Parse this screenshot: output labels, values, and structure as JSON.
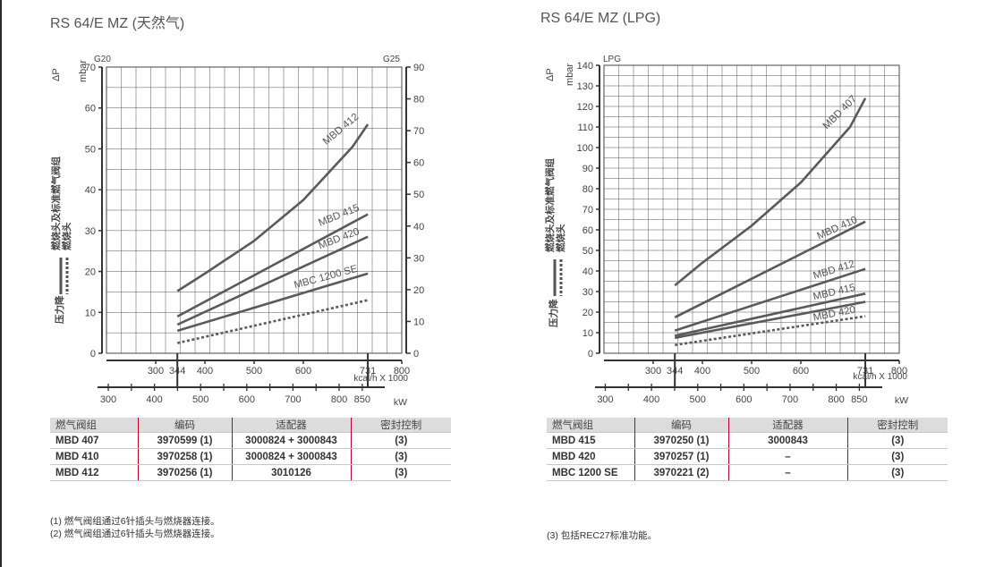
{
  "page": {
    "left_title": "RS 64/E MZ (天然气)",
    "right_title": "RS 64/E MZ (LPG)"
  },
  "axis_text": {
    "delta_p": "ΔP",
    "mbar": "mbar",
    "legend_head": "燃烧头及标准燃气阀组",
    "legend_valve": "燃烧头",
    "pressure_drop": "压力降",
    "kcal_unit": "kcal/h X 1000",
    "kw_unit": "kW"
  },
  "labels": {
    "mbd407": "MBD 407",
    "mbd410": "MBD 410",
    "mbd412": "MBD 412",
    "mbd415": "MBD 415",
    "mbd420": "MBD 420",
    "mbc1200": "MBC 1200 SE"
  },
  "chart_data": [
    {
      "type": "line",
      "title": "RS 64/E MZ (天然气)",
      "ylabel": "ΔP mbar",
      "left_axis_label": "G20",
      "right_axis_label": "G25",
      "ylim": [
        0,
        70
      ],
      "y_ticks": [
        0,
        10,
        20,
        30,
        40,
        50,
        60,
        70
      ],
      "y2lim": [
        0,
        90
      ],
      "y2_ticks": [
        0,
        10,
        20,
        30,
        40,
        50,
        60,
        70,
        80,
        90
      ],
      "kcal_lim": [
        200,
        800
      ],
      "kcal_ticks": [
        300,
        344,
        400,
        500,
        600,
        731,
        800
      ],
      "kw_ticks": [
        300,
        400,
        500,
        600,
        700,
        800,
        850
      ],
      "x_unit": "kcal/h X 1000",
      "x2_unit": "kW",
      "grid": true,
      "series": [
        {
          "name": "MBD 412",
          "style": "solid",
          "x": [
            344,
            400,
            500,
            600,
            700,
            731
          ],
          "y": [
            15.2,
            19.5,
            27.5,
            37.5,
            50.5,
            56
          ]
        },
        {
          "name": "MBD 415",
          "style": "solid",
          "x": [
            344,
            731
          ],
          "y": [
            9,
            34
          ]
        },
        {
          "name": "MBD 420",
          "style": "solid",
          "x": [
            344,
            731
          ],
          "y": [
            7,
            28.5
          ]
        },
        {
          "name": "MBC 1200 SE",
          "style": "solid",
          "x": [
            344,
            731
          ],
          "y": [
            5.5,
            19.5
          ]
        },
        {
          "name": "燃烧头",
          "style": "dashed",
          "x": [
            344,
            731
          ],
          "y": [
            2.5,
            13
          ]
        }
      ]
    },
    {
      "type": "line",
      "title": "RS 64/E MZ (LPG)",
      "ylabel": "ΔP mbar",
      "left_axis_label": "LPG",
      "ylim": [
        0,
        140
      ],
      "y_ticks": [
        0,
        10,
        20,
        30,
        40,
        50,
        60,
        70,
        80,
        90,
        100,
        110,
        120,
        130,
        140
      ],
      "kcal_lim": [
        200,
        800
      ],
      "kcal_ticks": [
        300,
        344,
        400,
        500,
        600,
        731,
        800
      ],
      "kw_ticks": [
        300,
        400,
        500,
        600,
        700,
        800,
        850
      ],
      "x_unit": "kcal/h X 1000",
      "x2_unit": "kW",
      "grid": true,
      "series": [
        {
          "name": "MBD 407",
          "style": "solid",
          "x": [
            344,
            400,
            500,
            600,
            700,
            731
          ],
          "y": [
            33,
            44,
            62,
            83,
            110,
            124
          ]
        },
        {
          "name": "MBD 410",
          "style": "solid",
          "x": [
            344,
            731
          ],
          "y": [
            17.5,
            64
          ]
        },
        {
          "name": "MBD 412",
          "style": "solid",
          "x": [
            344,
            731
          ],
          "y": [
            11,
            41
          ]
        },
        {
          "name": "MBD 415",
          "style": "solid",
          "x": [
            344,
            731
          ],
          "y": [
            8.5,
            29
          ]
        },
        {
          "name": "MBD 420",
          "style": "solid",
          "x": [
            344,
            731
          ],
          "y": [
            7.5,
            25
          ]
        },
        {
          "name": "燃烧头",
          "style": "dashed",
          "x": [
            344,
            731
          ],
          "y": [
            4,
            18
          ]
        }
      ]
    }
  ],
  "tables": {
    "left": {
      "headers": [
        "燃气阀组",
        "编码",
        "适配器",
        "密封控制"
      ],
      "rows": [
        [
          "MBD 407",
          "3970599 (1)",
          "3000824 + 3000843",
          "(3)"
        ],
        [
          "MBD 410",
          "3970258 (1)",
          "3000824 + 3000843",
          "(3)"
        ],
        [
          "MBD 412",
          "3970256 (1)",
          "3010126",
          "(3)"
        ]
      ]
    },
    "right": {
      "headers": [
        "燃气阀组",
        "编码",
        "适配器",
        "密封控制"
      ],
      "rows": [
        [
          "MBD 415",
          "3970250 (1)",
          "3000843",
          "(3)"
        ],
        [
          "MBD 420",
          "3970257 (1)",
          "–",
          "(3)"
        ],
        [
          "MBC 1200 SE",
          "3970221 (2)",
          "–",
          "(3)"
        ]
      ]
    }
  },
  "notes": {
    "left": [
      "(1) 燃气阀组通过6针插头与燃烧器连接。",
      "(2) 燃气阀组通过6针插头与燃烧器连接。"
    ],
    "right": [
      "(3) 包括REC27标准功能。"
    ]
  },
  "colors": {
    "curve": "#5a5a5a",
    "grid": "#555555",
    "table_divider": "#c0002a",
    "table_header": "#dcdcdc"
  }
}
